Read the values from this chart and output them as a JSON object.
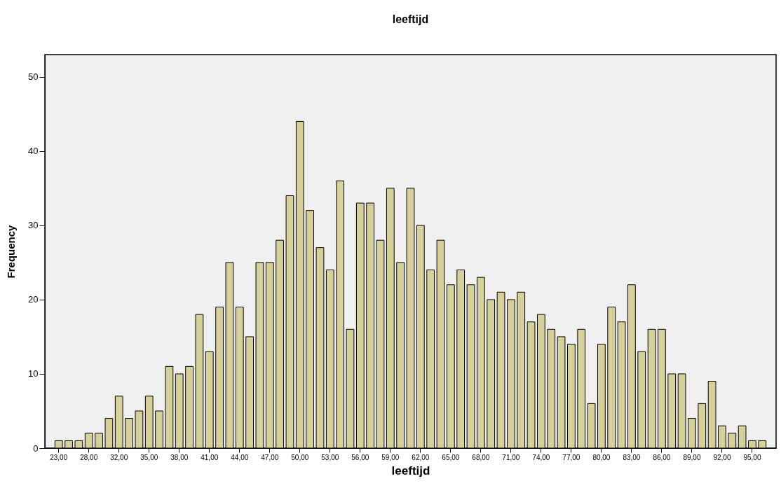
{
  "chart_data": {
    "type": "bar",
    "title": "leeftijd",
    "xlabel": "leeftijd",
    "ylabel": "Frequency",
    "categories": [
      "23,00",
      null,
      null,
      "28,00",
      null,
      null,
      "32,00",
      null,
      null,
      "35,00",
      null,
      null,
      "38,00",
      null,
      null,
      "41,00",
      null,
      null,
      "44,00",
      null,
      null,
      "47,00",
      null,
      null,
      "50,00",
      null,
      null,
      "53,00",
      null,
      null,
      "56,00",
      null,
      null,
      "59,00",
      null,
      null,
      "62,00",
      null,
      null,
      "65,00",
      null,
      null,
      "68,00",
      null,
      null,
      "71,00",
      null,
      null,
      "74,00",
      null,
      null,
      "77,00",
      null,
      null,
      "80,00",
      null,
      null,
      "83,00",
      null,
      null,
      "86,00",
      null,
      null,
      "89,00",
      null,
      null,
      "92,00",
      null,
      null,
      "95,00",
      null
    ],
    "values": [
      1,
      1,
      1,
      2,
      2,
      4,
      7,
      4,
      5,
      7,
      5,
      11,
      10,
      11,
      18,
      13,
      19,
      25,
      19,
      15,
      25,
      25,
      28,
      34,
      44,
      32,
      27,
      24,
      36,
      16,
      33,
      33,
      28,
      35,
      25,
      35,
      30,
      24,
      28,
      22,
      24,
      22,
      23,
      20,
      21,
      20,
      21,
      17,
      18,
      16,
      15,
      14,
      16,
      6,
      14,
      19,
      17,
      22,
      13,
      16,
      16,
      10,
      10,
      4,
      6,
      9,
      3,
      2,
      3,
      1,
      1
    ],
    "color": "#d6d09a",
    "ylim": [
      0,
      53
    ],
    "yticks": [
      0,
      10,
      20,
      30,
      40,
      50
    ]
  }
}
